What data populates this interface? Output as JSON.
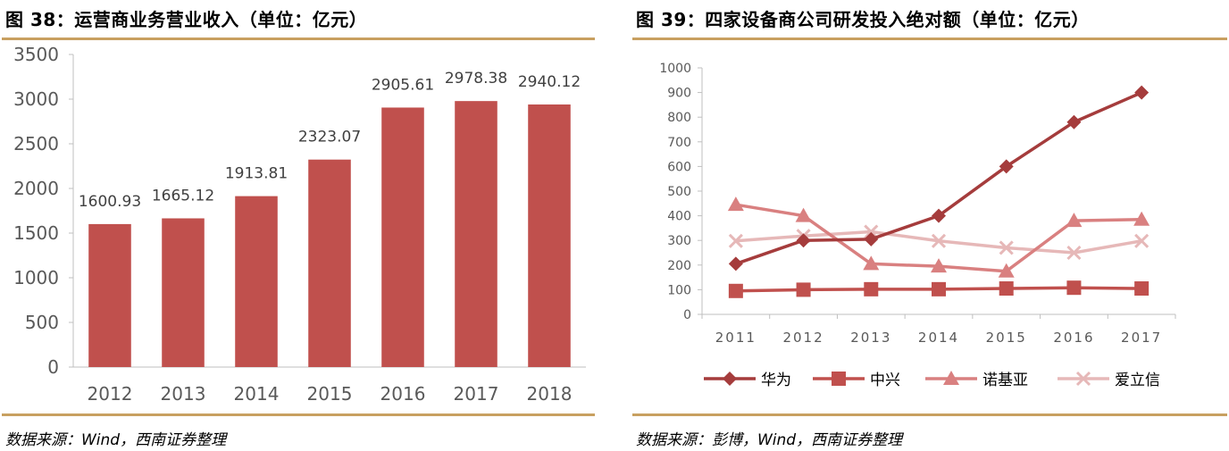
{
  "left_panel": {
    "title": "图 38：运营商业务营业收入（单位：亿元）",
    "source": "数据来源：Wind，西南证券整理"
  },
  "right_panel": {
    "title": "图 39：四家设备商公司研发投入绝对额（单位：亿元）",
    "source": "数据来源：彭博，Wind，西南证券整理"
  },
  "colors": {
    "rule": "#c8a060",
    "bar": "#c0504d",
    "huawei": "#a53c3c",
    "zte": "#c0504d",
    "nokia": "#d98080",
    "ericsson": "#e6b8b8"
  },
  "chart_data": [
    {
      "type": "bar",
      "title": "运营商业务营业收入（单位：亿元）",
      "categories": [
        "2012",
        "2013",
        "2014",
        "2015",
        "2016",
        "2017",
        "2018"
      ],
      "values": [
        1600.93,
        1665.12,
        1913.81,
        2323.07,
        2905.61,
        2978.38,
        2940.12
      ],
      "data_labels": [
        "1600.93",
        "1665.12",
        "1913.81",
        "2323.07",
        "2905.61",
        "2978.38",
        "2940.12"
      ],
      "ylim": [
        0,
        3500
      ],
      "yticks": [
        0,
        500,
        1000,
        1500,
        2000,
        2500,
        3000,
        3500
      ],
      "grid": false,
      "xlabel": "",
      "ylabel": ""
    },
    {
      "type": "line",
      "title": "四家设备商公司研发投入绝对额（单位：亿元）",
      "categories": [
        "2011",
        "2012",
        "2013",
        "2014",
        "2015",
        "2016",
        "2017"
      ],
      "series": [
        {
          "name": "华为",
          "marker": "diamond",
          "values": [
            205,
            300,
            305,
            400,
            600,
            780,
            900
          ]
        },
        {
          "name": "中兴",
          "marker": "square",
          "values": [
            95,
            100,
            102,
            102,
            105,
            108,
            105
          ]
        },
        {
          "name": "诺基亚",
          "marker": "triangle",
          "values": [
            445,
            400,
            205,
            195,
            175,
            380,
            385
          ]
        },
        {
          "name": "爱立信",
          "marker": "x",
          "values": [
            298,
            318,
            335,
            298,
            270,
            250,
            298
          ]
        }
      ],
      "ylim": [
        0,
        1000
      ],
      "yticks": [
        0,
        100,
        200,
        300,
        400,
        500,
        600,
        700,
        800,
        900,
        1000
      ],
      "grid": false,
      "legend": "bottom",
      "xlabel": "",
      "ylabel": ""
    }
  ]
}
